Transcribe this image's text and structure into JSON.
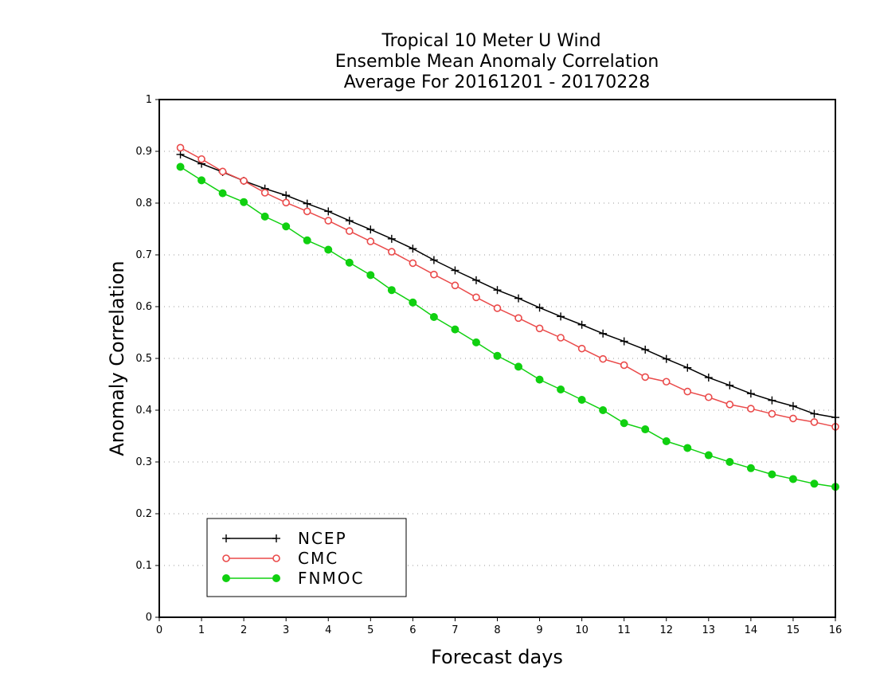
{
  "chart_data": {
    "type": "line",
    "title_lines": [
      "Tropical 10 Meter U Wind",
      "Ensemble Mean Anomaly Correlation",
      "Average For 20161201 - 20170228"
    ],
    "xlabel": "Forecast days",
    "ylabel": "Anomaly Correlation",
    "xlim": [
      0,
      16
    ],
    "ylim": [
      0,
      1
    ],
    "x_ticks": [
      "0",
      "1",
      "2",
      "3",
      "4",
      "5",
      "6",
      "7",
      "8",
      "9",
      "10",
      "11",
      "12",
      "13",
      "14",
      "15",
      "16"
    ],
    "y_ticks": [
      "0",
      "0.1",
      "0.2",
      "0.3",
      "0.4",
      "0.5",
      "0.6",
      "0.7",
      "0.8",
      "0.9",
      "1"
    ],
    "grid": "horizontal dotted",
    "legend_position": "bottom-left",
    "x": [
      0.5,
      1,
      1.5,
      2,
      2.5,
      3,
      3.5,
      4,
      4.5,
      5,
      5.5,
      6,
      6.5,
      7,
      7.5,
      8,
      8.5,
      9,
      9.5,
      10,
      10.5,
      11,
      11.5,
      12,
      12.5,
      13,
      13.5,
      14,
      14.5,
      15,
      15.5,
      16
    ],
    "series": [
      {
        "name": "NCEP",
        "color": "#000000",
        "marker": "plus",
        "values": [
          0.894,
          0.876,
          0.86,
          0.843,
          0.828,
          0.815,
          0.799,
          0.784,
          0.766,
          0.749,
          0.731,
          0.712,
          0.69,
          0.67,
          0.651,
          0.632,
          0.616,
          0.598,
          0.581,
          0.565,
          0.548,
          0.533,
          0.517,
          0.499,
          0.482,
          0.463,
          0.448,
          0.432,
          0.419,
          0.408,
          0.393,
          0.386
        ]
      },
      {
        "name": "CMC",
        "color": "#ea4a4a",
        "marker": "open-circle",
        "values": [
          0.907,
          0.885,
          0.861,
          0.843,
          0.82,
          0.801,
          0.784,
          0.766,
          0.746,
          0.726,
          0.706,
          0.684,
          0.662,
          0.641,
          0.618,
          0.597,
          0.578,
          0.558,
          0.54,
          0.519,
          0.499,
          0.487,
          0.464,
          0.455,
          0.436,
          0.425,
          0.411,
          0.403,
          0.393,
          0.384,
          0.377,
          0.368
        ]
      },
      {
        "name": "FNMOC",
        "color": "#10d010",
        "marker": "filled-circle",
        "values": [
          0.87,
          0.844,
          0.819,
          0.802,
          0.774,
          0.755,
          0.728,
          0.71,
          0.685,
          0.661,
          0.632,
          0.608,
          0.58,
          0.556,
          0.531,
          0.505,
          0.484,
          0.459,
          0.44,
          0.42,
          0.4,
          0.375,
          0.363,
          0.34,
          0.327,
          0.313,
          0.3,
          0.288,
          0.276,
          0.267,
          0.258,
          0.252
        ]
      }
    ]
  }
}
